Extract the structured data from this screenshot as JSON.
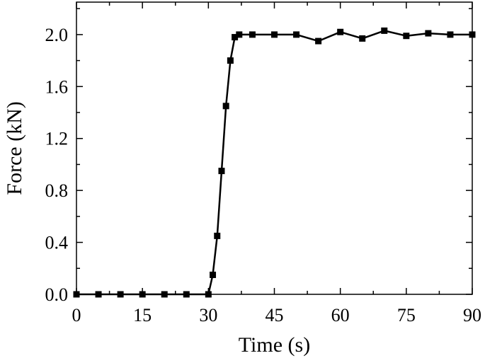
{
  "chart_data": {
    "type": "line",
    "xlabel": "Time (s)",
    "ylabel": "Force (kN)",
    "xlim": [
      0,
      90
    ],
    "ylim": [
      0,
      2.25
    ],
    "xticks": [
      0,
      15,
      30,
      45,
      60,
      75,
      90
    ],
    "xtick_labels": [
      "0",
      "15",
      "30",
      "45",
      "60",
      "75",
      "90"
    ],
    "yticks": [
      0,
      0.4,
      0.8,
      1.2,
      1.6,
      2.0
    ],
    "ytick_labels": [
      "0.0",
      "0.4",
      "0.8",
      "1.2",
      "1.6",
      "2.0"
    ],
    "grid": false,
    "legend": false,
    "series": [
      {
        "color": "#000000",
        "marker": "square",
        "x": [
          0,
          5,
          10,
          15,
          20,
          25,
          30,
          31,
          32,
          33,
          34,
          35,
          36,
          37,
          40,
          45,
          50,
          55,
          60,
          65,
          70,
          75,
          80,
          85,
          90
        ],
        "y": [
          0,
          0,
          0,
          0,
          0,
          0,
          0,
          0.15,
          0.45,
          0.95,
          1.45,
          1.8,
          1.98,
          2.0,
          2.0,
          2.0,
          2.0,
          1.95,
          2.02,
          1.97,
          2.03,
          1.99,
          2.01,
          2.0,
          2.0
        ]
      }
    ]
  }
}
